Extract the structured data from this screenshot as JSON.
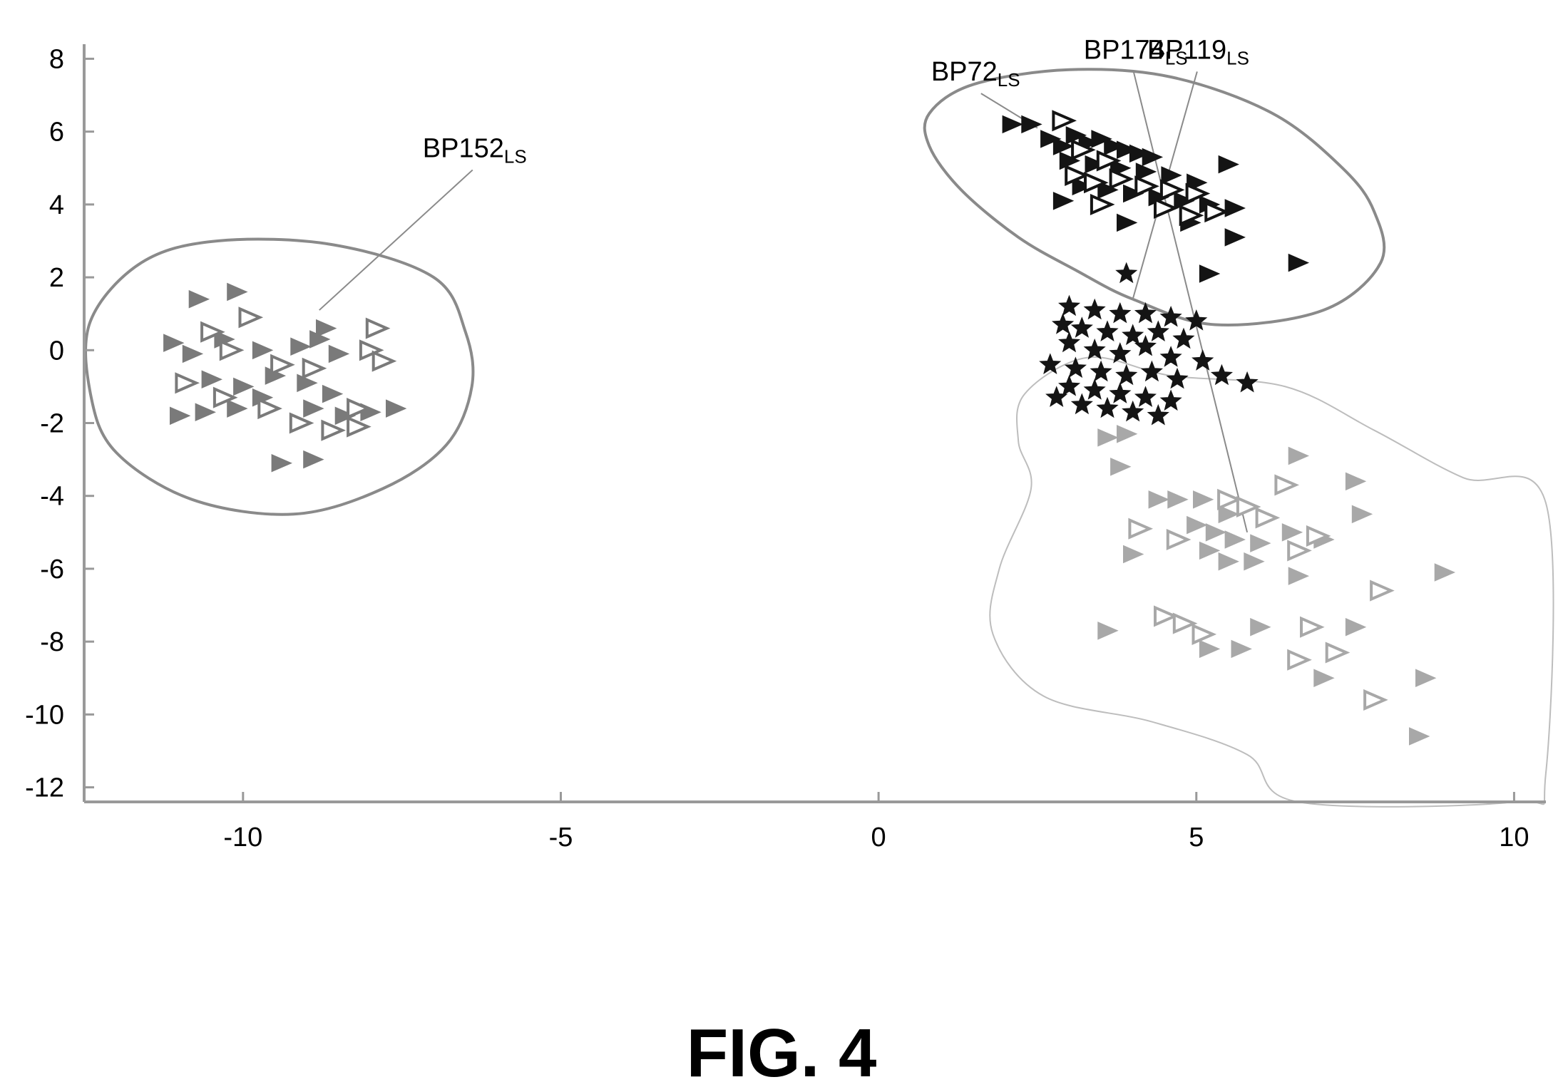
{
  "figure_caption": "FIG. 4",
  "chart_data": {
    "type": "scatter",
    "title": "",
    "xlabel": "",
    "ylabel": "",
    "xlim": [
      -12.5,
      10.5
    ],
    "ylim": [
      -12.4,
      8.4
    ],
    "x_ticks": [
      -10,
      -5,
      0,
      5,
      10
    ],
    "y_ticks": [
      8,
      6,
      4,
      2,
      0,
      -2,
      -4,
      -6,
      -8,
      -10,
      -12
    ],
    "grid": false,
    "legend": "none",
    "colors": {
      "black": "#141414",
      "dark_gray": "#505050",
      "mid_gray": "#7a7a7a",
      "light_gray": "#a8a8a8",
      "contour_dark": "#8a8a8a",
      "contour_light": "#bdbdbd"
    },
    "series": [
      {
        "group": "upper-right-cluster",
        "marker": "filled-triangle",
        "color": "black",
        "points": [
          [
            2.1,
            6.2
          ],
          [
            2.4,
            6.2
          ],
          [
            2.7,
            5.8
          ],
          [
            2.9,
            5.6
          ],
          [
            3.1,
            5.9
          ],
          [
            3.3,
            5.7
          ],
          [
            3.5,
            5.8
          ],
          [
            3.7,
            5.6
          ],
          [
            3.9,
            5.5
          ],
          [
            4.1,
            5.4
          ],
          [
            4.3,
            5.3
          ],
          [
            3.0,
            5.2
          ],
          [
            3.4,
            5.1
          ],
          [
            3.8,
            5.0
          ],
          [
            4.2,
            4.9
          ],
          [
            4.6,
            4.8
          ],
          [
            5.0,
            4.6
          ],
          [
            5.5,
            5.1
          ],
          [
            3.2,
            4.5
          ],
          [
            3.6,
            4.4
          ],
          [
            4.0,
            4.3
          ],
          [
            4.4,
            4.2
          ],
          [
            4.8,
            4.1
          ],
          [
            5.2,
            4.0
          ],
          [
            5.6,
            3.9
          ],
          [
            2.9,
            4.1
          ],
          [
            3.9,
            3.5
          ],
          [
            4.9,
            3.5
          ],
          [
            5.6,
            3.1
          ],
          [
            5.2,
            2.1
          ],
          [
            6.6,
            2.4
          ]
        ]
      },
      {
        "group": "upper-right-cluster",
        "marker": "open-triangle",
        "color": "black",
        "points": [
          [
            2.9,
            6.3
          ],
          [
            3.2,
            5.5
          ],
          [
            3.6,
            5.2
          ],
          [
            3.1,
            4.8
          ],
          [
            3.4,
            4.6
          ],
          [
            3.8,
            4.7
          ],
          [
            4.2,
            4.5
          ],
          [
            4.6,
            4.4
          ],
          [
            5.0,
            4.3
          ],
          [
            3.5,
            4.0
          ],
          [
            4.5,
            3.9
          ],
          [
            4.9,
            3.7
          ],
          [
            5.3,
            3.8
          ]
        ]
      },
      {
        "group": "middle-cluster",
        "marker": "filled-star",
        "color": "black",
        "points": [
          [
            3.9,
            2.1
          ],
          [
            3.0,
            1.2
          ],
          [
            3.4,
            1.1
          ],
          [
            3.8,
            1.0
          ],
          [
            4.2,
            1.0
          ],
          [
            4.6,
            0.9
          ],
          [
            5.0,
            0.8
          ],
          [
            2.9,
            0.7
          ],
          [
            3.2,
            0.6
          ],
          [
            3.6,
            0.5
          ],
          [
            4.0,
            0.4
          ],
          [
            4.4,
            0.5
          ],
          [
            4.8,
            0.3
          ],
          [
            3.0,
            0.2
          ],
          [
            3.4,
            0.0
          ],
          [
            3.8,
            -0.1
          ],
          [
            4.2,
            0.1
          ],
          [
            4.6,
            -0.2
          ],
          [
            5.1,
            -0.3
          ],
          [
            2.7,
            -0.4
          ],
          [
            3.1,
            -0.5
          ],
          [
            3.5,
            -0.6
          ],
          [
            3.9,
            -0.7
          ],
          [
            4.3,
            -0.6
          ],
          [
            4.7,
            -0.8
          ],
          [
            3.0,
            -1.0
          ],
          [
            3.4,
            -1.1
          ],
          [
            3.8,
            -1.2
          ],
          [
            4.2,
            -1.3
          ],
          [
            4.6,
            -1.4
          ],
          [
            2.8,
            -1.3
          ],
          [
            3.2,
            -1.5
          ],
          [
            3.6,
            -1.6
          ],
          [
            4.0,
            -1.7
          ],
          [
            4.4,
            -1.8
          ],
          [
            5.4,
            -0.7
          ],
          [
            5.8,
            -0.9
          ]
        ]
      },
      {
        "group": "lower-right-cluster",
        "marker": "filled-triangle",
        "color": "light_gray",
        "points": [
          [
            3.6,
            -2.4
          ],
          [
            3.9,
            -2.3
          ],
          [
            3.8,
            -3.2
          ],
          [
            4.4,
            -4.1
          ],
          [
            4.7,
            -4.1
          ],
          [
            5.1,
            -4.1
          ],
          [
            5.5,
            -4.5
          ],
          [
            5.0,
            -4.8
          ],
          [
            5.3,
            -5.0
          ],
          [
            5.6,
            -5.2
          ],
          [
            6.0,
            -5.3
          ],
          [
            6.5,
            -5.0
          ],
          [
            7.0,
            -5.2
          ],
          [
            5.2,
            -5.5
          ],
          [
            5.5,
            -5.8
          ],
          [
            5.9,
            -5.8
          ],
          [
            4.0,
            -5.6
          ],
          [
            6.6,
            -2.9
          ],
          [
            7.5,
            -3.6
          ],
          [
            7.6,
            -4.5
          ],
          [
            6.6,
            -6.2
          ],
          [
            8.9,
            -6.1
          ],
          [
            7.5,
            -7.6
          ],
          [
            6.0,
            -7.6
          ],
          [
            5.2,
            -8.2
          ],
          [
            5.7,
            -8.2
          ],
          [
            3.6,
            -7.7
          ],
          [
            7.0,
            -9.0
          ],
          [
            8.6,
            -9.0
          ],
          [
            8.5,
            -10.6
          ]
        ]
      },
      {
        "group": "lower-right-cluster",
        "marker": "open-triangle",
        "color": "light_gray",
        "points": [
          [
            4.1,
            -4.9
          ],
          [
            4.7,
            -5.2
          ],
          [
            5.5,
            -4.1
          ],
          [
            5.8,
            -4.3
          ],
          [
            6.1,
            -4.6
          ],
          [
            6.4,
            -3.7
          ],
          [
            6.6,
            -5.5
          ],
          [
            6.9,
            -5.1
          ],
          [
            4.5,
            -7.3
          ],
          [
            4.8,
            -7.5
          ],
          [
            5.1,
            -7.8
          ],
          [
            6.8,
            -7.6
          ],
          [
            6.6,
            -8.5
          ],
          [
            7.2,
            -8.3
          ],
          [
            7.9,
            -6.6
          ],
          [
            7.8,
            -9.6
          ]
        ]
      },
      {
        "group": "left-cluster",
        "marker": "filled-triangle",
        "color": "mid_gray",
        "points": [
          [
            -10.7,
            1.4
          ],
          [
            -10.1,
            1.6
          ],
          [
            -11.1,
            0.2
          ],
          [
            -10.8,
            -0.1
          ],
          [
            -10.3,
            0.3
          ],
          [
            -9.7,
            0.0
          ],
          [
            -9.1,
            0.1
          ],
          [
            -8.8,
            0.3
          ],
          [
            -8.5,
            -0.1
          ],
          [
            -10.5,
            -0.8
          ],
          [
            -10.0,
            -1.0
          ],
          [
            -9.5,
            -0.7
          ],
          [
            -9.0,
            -0.9
          ],
          [
            -8.6,
            -1.2
          ],
          [
            -11.0,
            -1.8
          ],
          [
            -10.6,
            -1.7
          ],
          [
            -10.1,
            -1.6
          ],
          [
            -9.7,
            -1.3
          ],
          [
            -8.9,
            -1.6
          ],
          [
            -8.4,
            -1.8
          ],
          [
            -8.0,
            -1.7
          ],
          [
            -7.6,
            -1.6
          ],
          [
            -9.4,
            -3.1
          ],
          [
            -8.9,
            -3.0
          ],
          [
            -8.7,
            0.6
          ]
        ]
      },
      {
        "group": "left-cluster",
        "marker": "open-triangle",
        "color": "mid_gray",
        "points": [
          [
            -10.5,
            0.5
          ],
          [
            -9.9,
            0.9
          ],
          [
            -10.2,
            0.0
          ],
          [
            -9.4,
            -0.4
          ],
          [
            -8.9,
            -0.5
          ],
          [
            -7.9,
            0.6
          ],
          [
            -8.0,
            0.0
          ],
          [
            -7.8,
            -0.3
          ],
          [
            -10.9,
            -0.9
          ],
          [
            -10.3,
            -1.3
          ],
          [
            -9.6,
            -1.6
          ],
          [
            -9.1,
            -2.0
          ],
          [
            -8.6,
            -2.2
          ],
          [
            -8.2,
            -1.6
          ],
          [
            -8.2,
            -2.1
          ]
        ]
      }
    ],
    "contours": [
      {
        "group": "left-cluster",
        "color": "contour_dark",
        "points": [
          [
            -12.4,
            0.8
          ],
          [
            -11.6,
            2.4
          ],
          [
            -10.4,
            3.0
          ],
          [
            -8.6,
            2.9
          ],
          [
            -7.0,
            2.0
          ],
          [
            -6.5,
            0.5
          ],
          [
            -6.4,
            -1.0
          ],
          [
            -6.8,
            -2.6
          ],
          [
            -7.8,
            -3.8
          ],
          [
            -9.2,
            -4.5
          ],
          [
            -10.8,
            -4.1
          ],
          [
            -12.0,
            -2.8
          ],
          [
            -12.4,
            -1.2
          ]
        ]
      },
      {
        "group": "upper-right-cluster",
        "color": "contour_dark",
        "points": [
          [
            0.8,
            6.5
          ],
          [
            1.5,
            7.3
          ],
          [
            3.0,
            7.7
          ],
          [
            4.6,
            7.5
          ],
          [
            6.2,
            6.5
          ],
          [
            7.3,
            5.0
          ],
          [
            7.8,
            3.8
          ],
          [
            7.9,
            2.4
          ],
          [
            7.0,
            1.1
          ],
          [
            5.3,
            0.7
          ],
          [
            4.0,
            1.4
          ],
          [
            3.1,
            2.2
          ],
          [
            2.2,
            3.1
          ],
          [
            1.3,
            4.4
          ],
          [
            0.8,
            5.6
          ]
        ]
      },
      {
        "group": "lower-right-cluster",
        "color": "contour_light",
        "points": [
          [
            2.3,
            -1.2
          ],
          [
            2.2,
            -2.5
          ],
          [
            2.4,
            -3.8
          ],
          [
            1.9,
            -6.0
          ],
          [
            1.8,
            -7.8
          ],
          [
            2.6,
            -9.5
          ],
          [
            4.3,
            -10.2
          ],
          [
            5.8,
            -11.1
          ],
          [
            6.6,
            -12.4
          ],
          [
            10.0,
            -12.4
          ],
          [
            10.5,
            -11.6
          ],
          [
            10.5,
            -4.2
          ],
          [
            9.2,
            -3.5
          ],
          [
            7.8,
            -2.2
          ],
          [
            6.4,
            -1.0
          ],
          [
            4.6,
            -0.7
          ],
          [
            3.3,
            -0.2
          ]
        ]
      }
    ],
    "annotations": [
      {
        "label": "BP152",
        "subscript": "LS",
        "anchor": [
          -8.8,
          1.1
        ],
        "text_at": [
          -6.5,
          5.3
        ]
      },
      {
        "label": "BP72",
        "subscript": "LS",
        "anchor": [
          2.5,
          6.1
        ],
        "text_at": [
          1.5,
          7.4
        ]
      },
      {
        "label": "BP174",
        "subscript": "LS",
        "anchor": [
          5.8,
          -5.0
        ],
        "text_at": [
          3.9,
          8.0
        ]
      },
      {
        "label": "BP119",
        "subscript": "LS",
        "anchor": [
          4.0,
          1.4
        ],
        "text_at": [
          4.9,
          8.0
        ]
      }
    ]
  }
}
